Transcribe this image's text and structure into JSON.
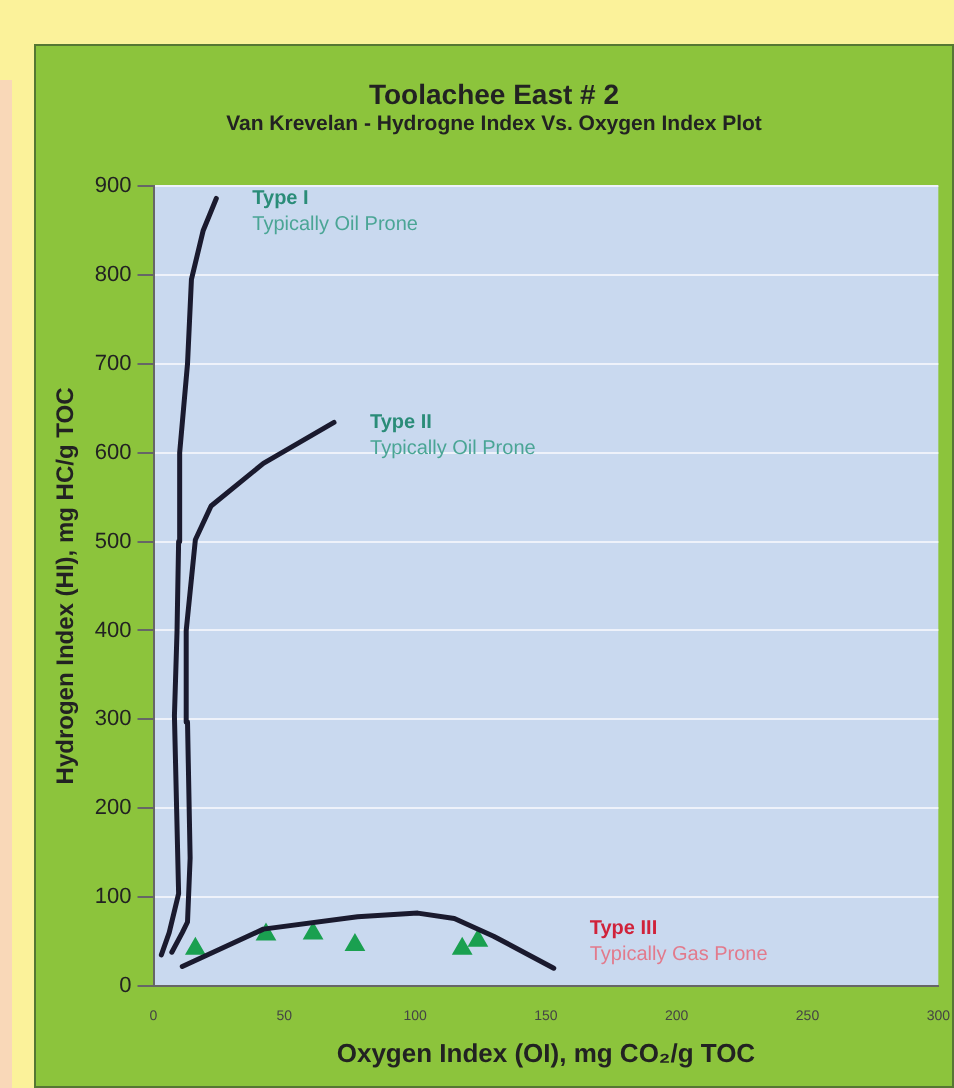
{
  "chart_data": {
    "type": "scatter",
    "title": "Toolachee East # 2",
    "subtitle": "Van Krevelan - Hydrogne Index Vs. Oxygen Index Plot",
    "xlabel": "Oxygen Index (OI), mg CO₂/g TOC",
    "ylabel": "Hydrogen Index (HI), mg HC/g TOC",
    "xlim": [
      0,
      300
    ],
    "xticks": [
      0,
      50,
      100,
      150,
      200,
      250,
      300
    ],
    "ylim": [
      0,
      900
    ],
    "yticks": [
      0,
      100,
      200,
      300,
      400,
      500,
      600,
      700,
      800,
      900
    ],
    "grid": "y",
    "series": [
      {
        "type": "line",
        "marker": "none",
        "color": "#1a1a2e",
        "x": [
          3,
          6,
          9.6,
          8,
          9,
          9.6,
          10,
          13,
          14.5,
          19,
          24
        ],
        "values": [
          35,
          60,
          104,
          304,
          400,
          500,
          600,
          700,
          795,
          850,
          886
        ]
      },
      {
        "type": "line",
        "marker": "none",
        "color": "#1a1a2e",
        "x": [
          7,
          11,
          13,
          14,
          13,
          12.5,
          16,
          22,
          42,
          69
        ],
        "values": [
          38,
          60,
          72,
          144,
          297,
          400,
          502,
          540,
          588,
          634
        ]
      },
      {
        "type": "line",
        "marker": "none",
        "color": "#1a1a2e",
        "x": [
          11,
          42,
          78,
          101,
          115,
          130,
          153
        ],
        "values": [
          22,
          64,
          78,
          82,
          76,
          56,
          20
        ]
      },
      {
        "type": "scatter",
        "marker": "triangle",
        "color": "#1aa050",
        "x": [
          16,
          43,
          61,
          77,
          118,
          124
        ],
        "values": [
          42,
          58,
          59,
          46,
          42,
          51
        ]
      }
    ],
    "annotations": [
      "Type I",
      "Typically Oil Prone",
      "Type II",
      "Typically Oil Prone",
      "Type III",
      "Typically Gas Prone"
    ]
  }
}
